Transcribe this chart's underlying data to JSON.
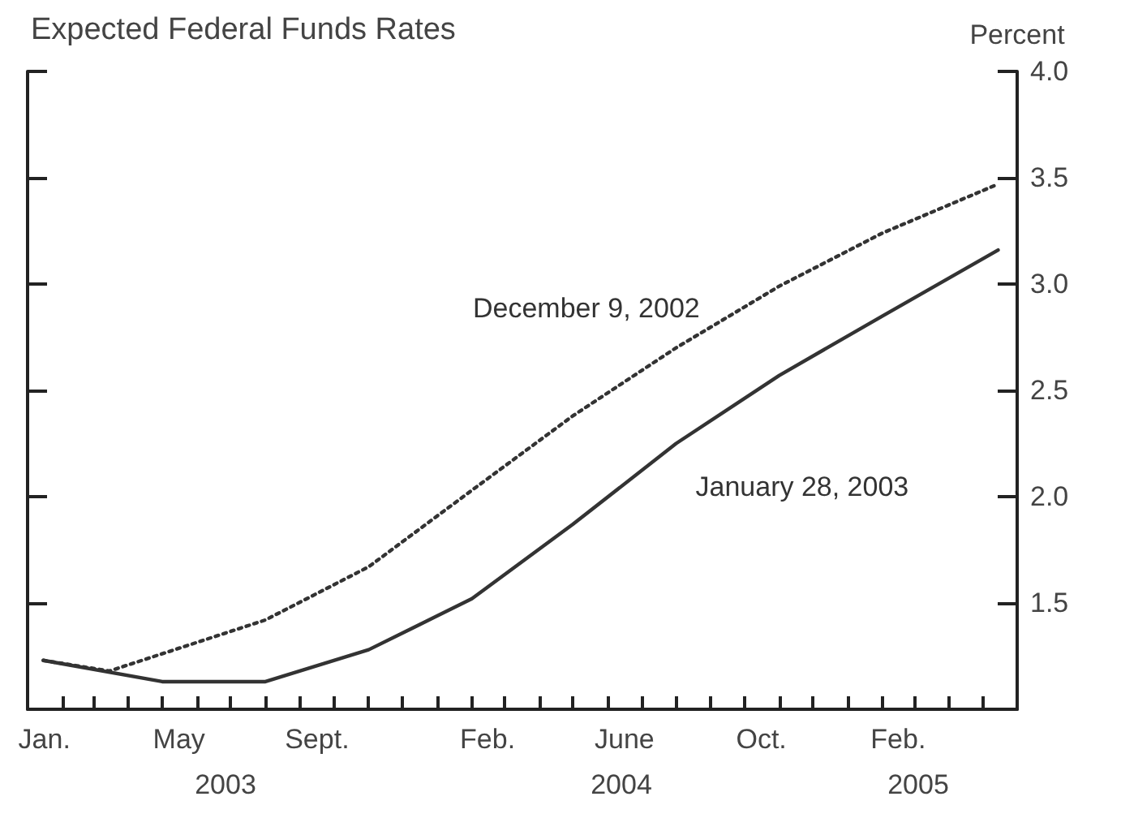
{
  "chart_data": {
    "type": "line",
    "title": "Expected Federal Funds Rates",
    "ylabel": "Percent",
    "xlim": [
      "2003-01",
      "2005-06"
    ],
    "xticks": [
      {
        "value": "2003-01",
        "label": null
      },
      {
        "value": "2003-02",
        "label": null
      },
      {
        "value": "2003-03",
        "label": null
      },
      {
        "value": "2003-04",
        "label": null
      },
      {
        "value": "2003-05",
        "label": null
      },
      {
        "value": "2003-06",
        "label": null
      },
      {
        "value": "2003-07",
        "label": null
      },
      {
        "value": "2003-08",
        "label": null
      },
      {
        "value": "2003-09",
        "label": null
      },
      {
        "value": "2003-10",
        "label": null
      },
      {
        "value": "2003-11",
        "label": null
      },
      {
        "value": "2003-12",
        "label": null
      },
      {
        "value": "2004-01",
        "label": null
      },
      {
        "value": "2004-02",
        "label": null
      },
      {
        "value": "2004-03",
        "label": null
      },
      {
        "value": "2004-04",
        "label": null
      },
      {
        "value": "2004-05",
        "label": null
      },
      {
        "value": "2004-06",
        "label": null
      },
      {
        "value": "2004-07",
        "label": null
      },
      {
        "value": "2004-08",
        "label": null
      },
      {
        "value": "2004-09",
        "label": null
      },
      {
        "value": "2004-10",
        "label": null
      },
      {
        "value": "2004-11",
        "label": null
      },
      {
        "value": "2004-12",
        "label": null
      },
      {
        "value": "2005-01",
        "label": null
      },
      {
        "value": "2005-02",
        "label": null
      },
      {
        "value": "2005-03",
        "label": null
      },
      {
        "value": "2005-04",
        "label": null
      },
      {
        "value": "2005-05",
        "label": null
      },
      {
        "value": "2003-01-16",
        "label": "Jan."
      },
      {
        "value": "2003-05-16",
        "label": "May"
      },
      {
        "value": "2003-09-16",
        "label": "Sept."
      },
      {
        "value": "2004-02-15",
        "label": "Feb."
      },
      {
        "value": "2004-06-16",
        "label": "June"
      },
      {
        "value": "2004-10-16",
        "label": "Oct."
      },
      {
        "value": "2005-02-15",
        "label": "Feb."
      }
    ],
    "annotations": [
      "2003",
      "2004",
      "2005"
    ],
    "ylim": [
      1.0,
      4.0
    ],
    "yticks": [
      {
        "value": 1.5,
        "label": "1.5"
      },
      {
        "value": 2,
        "label": "2.0"
      },
      {
        "value": 2.5,
        "label": "2.5"
      },
      {
        "value": 3,
        "label": "3.0"
      },
      {
        "value": 3.5,
        "label": "3.5"
      },
      {
        "value": 4,
        "label": "4.0"
      }
    ],
    "legend": false,
    "marker": "none",
    "series": [
      {
        "name": "December 9, 2002",
        "color": "#333333",
        "line_style": "dotted",
        "x": [
          "2003-01-15",
          "2003-03-15",
          "2003-08",
          "2003-11",
          "2004-02",
          "2004-05",
          "2004-08",
          "2004-11",
          "2005-02",
          "2005-05-15"
        ],
        "values": [
          1.23,
          1.18,
          1.42,
          1.67,
          2.03,
          2.38,
          2.7,
          2.99,
          3.24,
          3.47
        ]
      },
      {
        "name": "January 28, 2003",
        "color": "#333333",
        "line_style": "solid",
        "x": [
          "2003-01-15",
          "2003-05",
          "2003-08",
          "2003-11",
          "2004-02",
          "2004-05",
          "2004-08",
          "2004-11",
          "2005-02",
          "2005-05-15"
        ],
        "values": [
          1.23,
          1.13,
          1.13,
          1.28,
          1.52,
          1.87,
          2.25,
          2.57,
          2.85,
          3.16
        ]
      }
    ]
  }
}
